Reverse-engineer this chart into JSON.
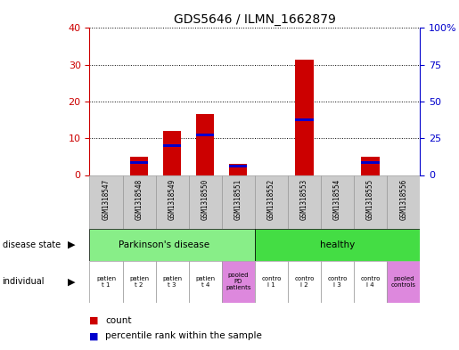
{
  "title": "GDS5646 / ILMN_1662879",
  "samples": [
    "GSM1318547",
    "GSM1318548",
    "GSM1318549",
    "GSM1318550",
    "GSM1318551",
    "GSM1318552",
    "GSM1318553",
    "GSM1318554",
    "GSM1318555",
    "GSM1318556"
  ],
  "count_values": [
    0,
    5,
    12,
    16.5,
    3,
    0,
    31.5,
    0,
    5,
    0
  ],
  "percentile_values": [
    0,
    3.5,
    8,
    11,
    2.5,
    0,
    15,
    0,
    3.5,
    0
  ],
  "left_ylim": [
    0,
    40
  ],
  "right_ylim": [
    0,
    100
  ],
  "left_yticks": [
    0,
    10,
    20,
    30,
    40
  ],
  "right_yticks": [
    0,
    25,
    50,
    75,
    100
  ],
  "right_yticklabels": [
    "0",
    "25",
    "50",
    "75",
    "100%"
  ],
  "bar_color": "#cc0000",
  "percentile_color": "#0000cc",
  "bar_width": 0.55,
  "disease_color_pd": "#88ee88",
  "disease_color_healthy": "#44dd44",
  "pooled_color": "#dd88dd",
  "indiv_colors": [
    "#ffffff",
    "#ffffff",
    "#ffffff",
    "#ffffff",
    "#dd88dd",
    "#ffffff",
    "#ffffff",
    "#ffffff",
    "#ffffff",
    "#dd88dd"
  ],
  "bg_color": "#ffffff",
  "tick_label_color_left": "#cc0000",
  "tick_label_color_right": "#0000cc",
  "sample_bg_color": "#cccccc",
  "sample_border_color": "#999999"
}
